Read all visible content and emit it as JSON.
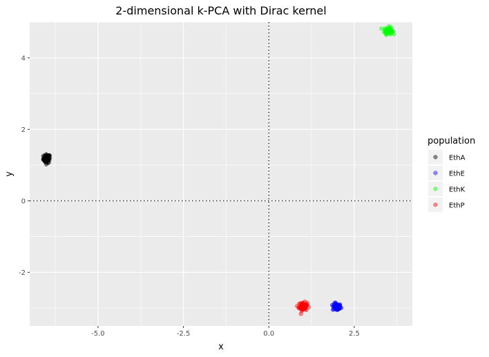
{
  "chart_data": {
    "type": "scatter",
    "title": "2-dimensional k-PCA with Dirac kernel",
    "xlabel": "x",
    "ylabel": "y",
    "xlim": [
      -7.0,
      4.2
    ],
    "ylim": [
      -3.5,
      5.0
    ],
    "x_ticks": [
      -5.0,
      -2.5,
      0.0,
      2.5
    ],
    "x_tick_labels": [
      "-5.0",
      "-2.5",
      "0.0",
      "2.5"
    ],
    "y_ticks": [
      -2,
      0,
      2,
      4
    ],
    "y_tick_labels": [
      "-2",
      "0",
      "2",
      "4"
    ],
    "grid": true,
    "background": "#ebebeb",
    "reference_lines": [
      {
        "axis": "x",
        "value": 0,
        "style": "dotted"
      },
      {
        "axis": "y",
        "value": 0,
        "style": "dotted"
      }
    ],
    "legend": {
      "title": "population",
      "placement": "right"
    },
    "series": [
      {
        "name": "EthA",
        "color": "#000000",
        "center": [
          -6.5,
          1.18
        ],
        "spread": [
          0.05,
          0.06
        ]
      },
      {
        "name": "EthE",
        "color": "#0000ff",
        "center": [
          1.99,
          -2.97
        ],
        "spread": [
          0.06,
          0.05
        ]
      },
      {
        "name": "EthK",
        "color": "#00ff00",
        "center": [
          3.5,
          4.76
        ],
        "spread": [
          0.06,
          0.05
        ]
      },
      {
        "name": "EthP",
        "color": "#ff0000",
        "center": [
          1.0,
          -2.96
        ],
        "spread": [
          0.06,
          0.06
        ]
      }
    ]
  }
}
